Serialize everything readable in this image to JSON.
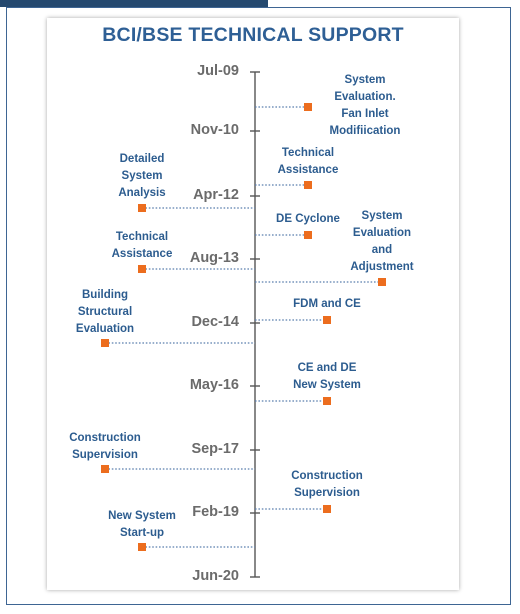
{
  "title": "BCI/BSE TECHNICAL SUPPORT",
  "colors": {
    "title": "#2e5f95",
    "label": "#2c5c8f",
    "tick": "#6b6b6b",
    "marker": "#ec6d1e",
    "axis": "#555555",
    "connector": "#5b7fae"
  },
  "timeline": {
    "ticks": [
      "Jul-09",
      "Nov-10",
      "Apr-12",
      "Aug-13",
      "Dec-14",
      "May-16",
      "Sep-17",
      "Feb-19",
      "Jun-20"
    ],
    "events": [
      {
        "label": "System\nEvaluation.\nFan Inlet\nModifiication"
      },
      {
        "label": "Technical\nAssistance"
      },
      {
        "label": "Detailed\nSystem\nAnalysis"
      },
      {
        "label": "DE Cyclone"
      },
      {
        "label": "System\nEvaluation\nand\nAdjustment"
      },
      {
        "label": "Technical\nAssistance"
      },
      {
        "label": "FDM and CE"
      },
      {
        "label": "Building\nStructural\nEvaluation"
      },
      {
        "label": "CE and DE\nNew System"
      },
      {
        "label": "Construction\nSupervision"
      },
      {
        "label": "Construction\nSupervision"
      },
      {
        "label": "New System\nStart-up"
      }
    ]
  }
}
